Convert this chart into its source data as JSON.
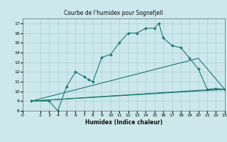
{
  "title": "Courbe de l'humidex pour Sognefjell",
  "xlabel": "Humidex (Indice chaleur)",
  "bg_color": "#cce8ec",
  "grid_color": "#aacdd4",
  "line_color": "#1a7a6e",
  "xlim": [
    0,
    23
  ],
  "ylim": [
    8,
    17.5
  ],
  "xticks": [
    0,
    2,
    3,
    4,
    5,
    6,
    7,
    8,
    9,
    10,
    11,
    12,
    13,
    14,
    15,
    16,
    17,
    18,
    19,
    20,
    21,
    22,
    23
  ],
  "yticks": [
    8,
    9,
    10,
    11,
    12,
    13,
    14,
    15,
    16,
    17
  ],
  "line1_x": [
    1,
    3,
    4,
    5,
    6,
    7,
    7.5,
    8,
    9,
    10,
    11,
    12,
    13,
    14,
    15,
    15.5,
    16,
    17,
    18,
    19,
    20,
    21,
    22,
    23
  ],
  "line1_y": [
    9,
    9,
    8,
    10.5,
    12,
    11.5,
    11.2,
    11,
    13.5,
    13.8,
    15,
    16,
    16,
    16.5,
    16.5,
    17,
    15.5,
    14.7,
    14.5,
    13.4,
    12.3,
    10.2,
    10.3,
    10.2
  ],
  "line2_x": [
    1,
    20,
    23
  ],
  "line2_y": [
    9,
    13.4,
    10.2
  ],
  "line3_x": [
    1,
    20,
    23
  ],
  "line3_y": [
    9,
    10.1,
    10.2
  ],
  "line4_x": [
    1,
    23
  ],
  "line4_y": [
    9,
    10.2
  ]
}
